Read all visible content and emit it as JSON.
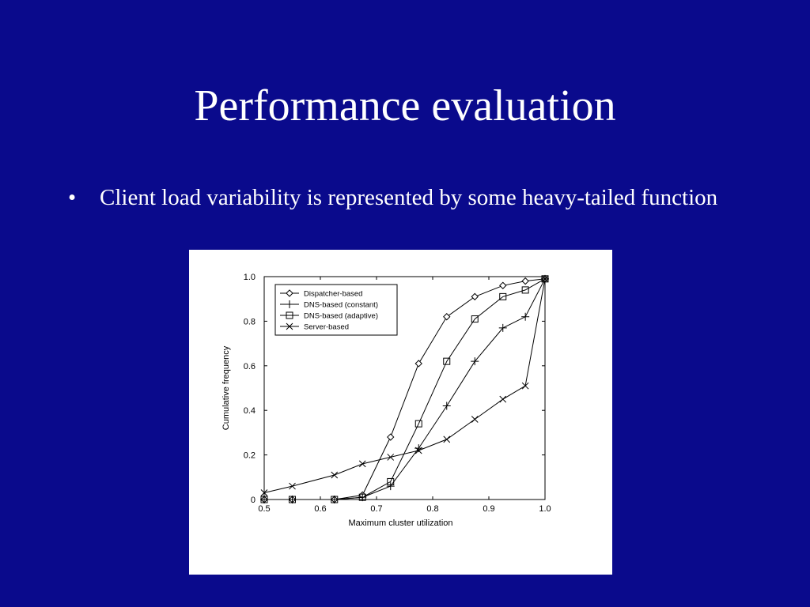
{
  "slide": {
    "title": "Performance evaluation",
    "bullet_glyph": "•",
    "bullet_text": "Client load variability is represented by some heavy-tailed function"
  },
  "chart_data": {
    "type": "line",
    "title": "",
    "xlabel": "Maximum cluster utilization",
    "ylabel": "Cumulative frequency",
    "xlim": [
      0.5,
      1.0
    ],
    "ylim": [
      0,
      1.0
    ],
    "xticks": [
      "0.5",
      "0.6",
      "0.7",
      "0.8",
      "0.9",
      "1.0"
    ],
    "yticks": [
      "0",
      "0.2",
      "0.4",
      "0.6",
      "0.8",
      "1.0"
    ],
    "grid": false,
    "legend_position": "top-left",
    "series": [
      {
        "name": "Dispatcher-based",
        "marker": "diamond",
        "points": [
          [
            0.5,
            0.0
          ],
          [
            0.55,
            0.0
          ],
          [
            0.625,
            0.0
          ],
          [
            0.675,
            0.02
          ],
          [
            0.725,
            0.28
          ],
          [
            0.775,
            0.61
          ],
          [
            0.825,
            0.82
          ],
          [
            0.875,
            0.91
          ],
          [
            0.925,
            0.96
          ],
          [
            0.965,
            0.98
          ],
          [
            1.0,
            0.99
          ]
        ]
      },
      {
        "name": "DNS-based (constant)",
        "marker": "plus",
        "points": [
          [
            0.5,
            0.0
          ],
          [
            0.55,
            0.0
          ],
          [
            0.625,
            0.0
          ],
          [
            0.675,
            0.01
          ],
          [
            0.725,
            0.06
          ],
          [
            0.775,
            0.23
          ],
          [
            0.825,
            0.42
          ],
          [
            0.875,
            0.62
          ],
          [
            0.925,
            0.77
          ],
          [
            0.965,
            0.82
          ],
          [
            1.0,
            0.99
          ]
        ]
      },
      {
        "name": "DNS-based (adaptive)",
        "marker": "square",
        "points": [
          [
            0.5,
            0.0
          ],
          [
            0.55,
            0.0
          ],
          [
            0.625,
            0.0
          ],
          [
            0.675,
            0.01
          ],
          [
            0.725,
            0.08
          ],
          [
            0.775,
            0.34
          ],
          [
            0.825,
            0.62
          ],
          [
            0.875,
            0.81
          ],
          [
            0.925,
            0.91
          ],
          [
            0.965,
            0.94
          ],
          [
            1.0,
            0.99
          ]
        ]
      },
      {
        "name": "Server-based",
        "marker": "cross",
        "points": [
          [
            0.5,
            0.03
          ],
          [
            0.55,
            0.06
          ],
          [
            0.625,
            0.11
          ],
          [
            0.675,
            0.16
          ],
          [
            0.725,
            0.19
          ],
          [
            0.775,
            0.22
          ],
          [
            0.825,
            0.27
          ],
          [
            0.875,
            0.36
          ],
          [
            0.925,
            0.45
          ],
          [
            0.965,
            0.51
          ],
          [
            1.0,
            0.99
          ]
        ]
      }
    ]
  }
}
